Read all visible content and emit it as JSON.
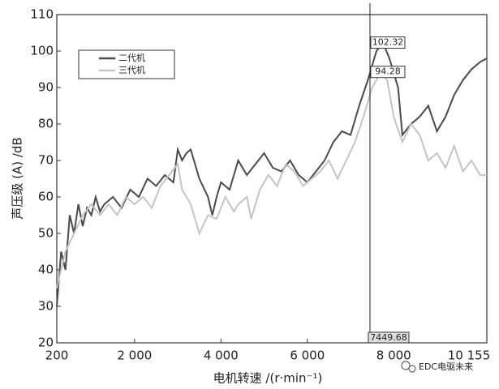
{
  "chart_data": {
    "type": "line",
    "y_label": "声压级 (A) /dB",
    "x_label": "电机转速 /(r·min⁻¹)",
    "xlim": [
      200,
      10155
    ],
    "xticks": [
      200,
      {
        "value": 2000,
        "label": "2 000"
      },
      {
        "value": 4000,
        "label": "4 000"
      },
      {
        "value": 6000,
        "label": "6 000"
      },
      {
        "value": 8000,
        "label": "8 000"
      },
      {
        "value": 10155,
        "label": "10 155"
      }
    ],
    "ylim": [
      20,
      110
    ],
    "yticks": [
      20,
      30,
      40,
      50,
      60,
      70,
      80,
      90,
      100,
      110
    ],
    "grid": false,
    "legend": "upper left",
    "series": [
      {
        "name": "二代机",
        "color": "#4a4a4a",
        "x": [
          200,
          300,
          400,
          500,
          600,
          700,
          800,
          900,
          1000,
          1100,
          1200,
          1300,
          1500,
          1700,
          1900,
          2100,
          2300,
          2500,
          2700,
          2900,
          3000,
          3100,
          3200,
          3300,
          3500,
          3700,
          3800,
          3900,
          4000,
          4200,
          4400,
          4600,
          4800,
          5000,
          5200,
          5400,
          5600,
          5800,
          6000,
          6200,
          6400,
          6600,
          6800,
          7000,
          7200,
          7400,
          7600,
          7750,
          7900,
          8100,
          8200,
          8400,
          8600,
          8800,
          9000,
          9200,
          9400,
          9600,
          9800,
          10000,
          10155
        ],
        "values": [
          30,
          45,
          40,
          55,
          50,
          58,
          52,
          57,
          55,
          60,
          56,
          58,
          60,
          57,
          62,
          60,
          65,
          63,
          66,
          64,
          73,
          70,
          72,
          73,
          65,
          60,
          55,
          60,
          64,
          62,
          70,
          66,
          69,
          72,
          68,
          67,
          70,
          66,
          64,
          67,
          70,
          75,
          78,
          77,
          85,
          92,
          100,
          102.32,
          98,
          90,
          77,
          80,
          82,
          85,
          78,
          82,
          88,
          92,
          95,
          97,
          98
        ]
      },
      {
        "name": "三代机",
        "color": "#c4c4c4",
        "x": [
          200,
          400,
          600,
          800,
          1000,
          1200,
          1400,
          1600,
          1800,
          2000,
          2200,
          2400,
          2600,
          2800,
          3000,
          3100,
          3300,
          3500,
          3700,
          3900,
          4100,
          4300,
          4400,
          4600,
          4700,
          4900,
          5100,
          5300,
          5500,
          5700,
          5900,
          6100,
          6300,
          6500,
          6700,
          6900,
          7100,
          7300,
          7500,
          7700,
          7850,
          8000,
          8200,
          8400,
          8600,
          8800,
          9000,
          9200,
          9400,
          9600,
          9800,
          10000,
          10155
        ],
        "values": [
          35,
          45,
          50,
          55,
          58,
          55,
          58,
          55,
          60,
          58,
          60,
          57,
          63,
          66,
          69,
          62,
          58,
          50,
          55,
          54,
          60,
          56,
          58,
          60,
          54,
          62,
          66,
          63,
          69,
          67,
          63,
          65,
          67,
          70,
          65,
          70,
          75,
          82,
          90,
          94.28,
          92,
          82,
          75,
          80,
          77,
          70,
          72,
          68,
          74,
          67,
          70,
          66,
          66
        ]
      }
    ],
    "annotations": [
      102.32,
      94.28
    ],
    "cursor_x": 7449.68,
    "watermark": "EDC电驱未来"
  }
}
